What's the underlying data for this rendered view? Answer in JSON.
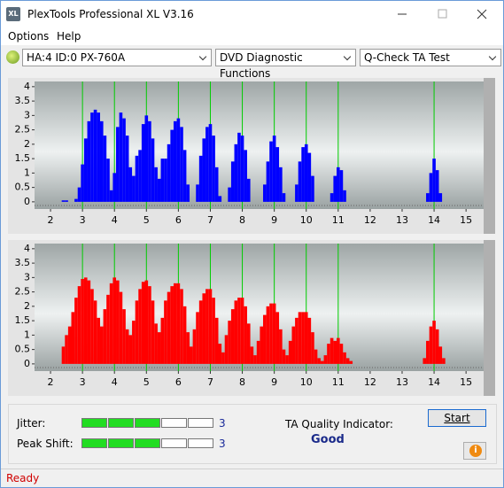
{
  "window": {
    "title": "PlexTools Professional XL V3.16"
  },
  "menu": [
    "Options",
    "Help"
  ],
  "toolbar": {
    "drive": "HA:4 ID:0  PX-760A",
    "function": "DVD Diagnostic Functions",
    "test": "Q-Check TA Test"
  },
  "chart_data": [
    {
      "type": "bar",
      "color": "#0000ff",
      "grid_color": "#00cc00",
      "xlim": [
        1.5,
        15.55
      ],
      "ylim": [
        -0.25,
        4.18
      ],
      "xticks": [
        2,
        3,
        4,
        5,
        6,
        7,
        8,
        9,
        10,
        11,
        12,
        13,
        14,
        15
      ],
      "yticks": [
        0,
        0.5,
        1,
        1.5,
        2,
        2.5,
        3,
        3.5,
        4
      ],
      "reference_lines": [
        3,
        4,
        5,
        6,
        7,
        8,
        9,
        10,
        11,
        14
      ],
      "x": [
        2.4,
        2.5,
        2.8,
        2.9,
        3.0,
        3.1,
        3.2,
        3.3,
        3.4,
        3.5,
        3.6,
        3.7,
        3.8,
        3.9,
        4.0,
        4.1,
        4.2,
        4.3,
        4.4,
        4.5,
        4.6,
        4.7,
        4.8,
        4.9,
        5.0,
        5.1,
        5.2,
        5.3,
        5.4,
        5.5,
        5.6,
        5.7,
        5.8,
        5.9,
        6.0,
        6.1,
        6.2,
        6.3,
        6.6,
        6.7,
        6.8,
        6.9,
        7.0,
        7.1,
        7.2,
        7.3,
        7.6,
        7.7,
        7.8,
        7.9,
        8.0,
        8.1,
        8.2,
        8.7,
        8.8,
        8.9,
        9.0,
        9.1,
        9.2,
        9.3,
        9.7,
        9.8,
        9.9,
        10.0,
        10.1,
        10.2,
        10.8,
        10.9,
        11.0,
        11.1,
        11.2,
        13.8,
        13.9,
        14.0,
        14.1,
        14.2
      ],
      "values": [
        0.05,
        0.05,
        0.1,
        0.5,
        1.3,
        2.2,
        2.8,
        3.1,
        3.2,
        3.1,
        2.8,
        2.3,
        1.5,
        0.4,
        1.0,
        2.6,
        3.1,
        2.9,
        2.3,
        1.2,
        0.9,
        1.6,
        1.8,
        2.7,
        3.0,
        2.8,
        2.2,
        1.2,
        0.8,
        1.5,
        1.5,
        2.0,
        2.5,
        2.8,
        2.9,
        2.6,
        1.8,
        0.6,
        0.6,
        1.6,
        2.2,
        2.6,
        2.7,
        2.3,
        1.2,
        0.2,
        0.5,
        1.4,
        2.0,
        2.4,
        2.3,
        1.8,
        0.8,
        0.6,
        1.4,
        2.1,
        2.3,
        1.9,
        1.2,
        0.3,
        0.6,
        1.4,
        1.9,
        2.0,
        1.7,
        0.9,
        0.3,
        0.9,
        1.2,
        1.1,
        0.4,
        0.3,
        1.0,
        1.5,
        1.1,
        0.3
      ]
    },
    {
      "type": "bar",
      "color": "#ff0000",
      "grid_color": "#00cc00",
      "xlim": [
        1.5,
        15.55
      ],
      "ylim": [
        -0.25,
        4.18
      ],
      "xticks": [
        2,
        3,
        4,
        5,
        6,
        7,
        8,
        9,
        10,
        11,
        12,
        13,
        14,
        15
      ],
      "yticks": [
        0,
        0.5,
        1,
        1.5,
        2,
        2.5,
        3,
        3.5,
        4
      ],
      "reference_lines": [
        3,
        4,
        5,
        6,
        7,
        8,
        9,
        10,
        11,
        14
      ],
      "x": [
        2.4,
        2.5,
        2.6,
        2.7,
        2.8,
        2.9,
        3.0,
        3.1,
        3.2,
        3.3,
        3.4,
        3.5,
        3.6,
        3.7,
        3.8,
        3.9,
        4.0,
        4.1,
        4.2,
        4.3,
        4.4,
        4.5,
        4.6,
        4.7,
        4.8,
        4.9,
        5.0,
        5.1,
        5.2,
        5.3,
        5.4,
        5.5,
        5.6,
        5.7,
        5.8,
        5.9,
        6.0,
        6.1,
        6.2,
        6.3,
        6.4,
        6.5,
        6.6,
        6.7,
        6.8,
        6.9,
        7.0,
        7.1,
        7.2,
        7.3,
        7.4,
        7.5,
        7.6,
        7.7,
        7.8,
        7.9,
        8.0,
        8.1,
        8.2,
        8.3,
        8.4,
        8.5,
        8.6,
        8.7,
        8.8,
        8.9,
        9.0,
        9.1,
        9.2,
        9.3,
        9.4,
        9.5,
        9.6,
        9.7,
        9.8,
        9.9,
        10.0,
        10.1,
        10.2,
        10.3,
        10.4,
        10.5,
        10.6,
        10.7,
        10.8,
        10.9,
        11.0,
        11.1,
        11.2,
        11.3,
        11.4,
        13.7,
        13.8,
        13.9,
        14.0,
        14.1,
        14.2,
        14.3
      ],
      "values": [
        0.6,
        1.0,
        1.3,
        1.8,
        2.3,
        2.7,
        2.95,
        3.0,
        2.9,
        2.6,
        2.2,
        1.6,
        1.3,
        1.9,
        2.4,
        2.8,
        3.0,
        2.9,
        2.5,
        1.9,
        1.2,
        1.0,
        1.5,
        2.2,
        2.6,
        2.85,
        2.9,
        2.7,
        2.2,
        1.4,
        1.1,
        1.6,
        2.2,
        2.5,
        2.7,
        2.8,
        2.8,
        2.6,
        2.0,
        1.1,
        0.6,
        1.2,
        1.8,
        2.2,
        2.45,
        2.6,
        2.6,
        2.3,
        1.6,
        0.7,
        0.4,
        1.0,
        1.5,
        1.9,
        2.2,
        2.3,
        2.3,
        2.0,
        1.4,
        0.6,
        0.3,
        0.8,
        1.3,
        1.7,
        2.0,
        2.1,
        2.1,
        1.8,
        1.2,
        0.5,
        0.3,
        0.8,
        1.3,
        1.6,
        1.8,
        1.8,
        1.8,
        1.6,
        1.1,
        0.5,
        0.2,
        0.1,
        0.3,
        0.7,
        0.9,
        0.8,
        0.9,
        0.7,
        0.4,
        0.2,
        0.1,
        0.2,
        0.8,
        1.3,
        1.5,
        1.2,
        0.6,
        0.2
      ]
    }
  ],
  "jitter": {
    "label": "Jitter:",
    "value": 3,
    "segments": 5
  },
  "peak_shift": {
    "label": "Peak Shift:",
    "value": 3,
    "segments": 5
  },
  "ta_quality": {
    "label": "TA Quality Indicator:",
    "value": "Good"
  },
  "start_button": "Start",
  "status": "Ready"
}
